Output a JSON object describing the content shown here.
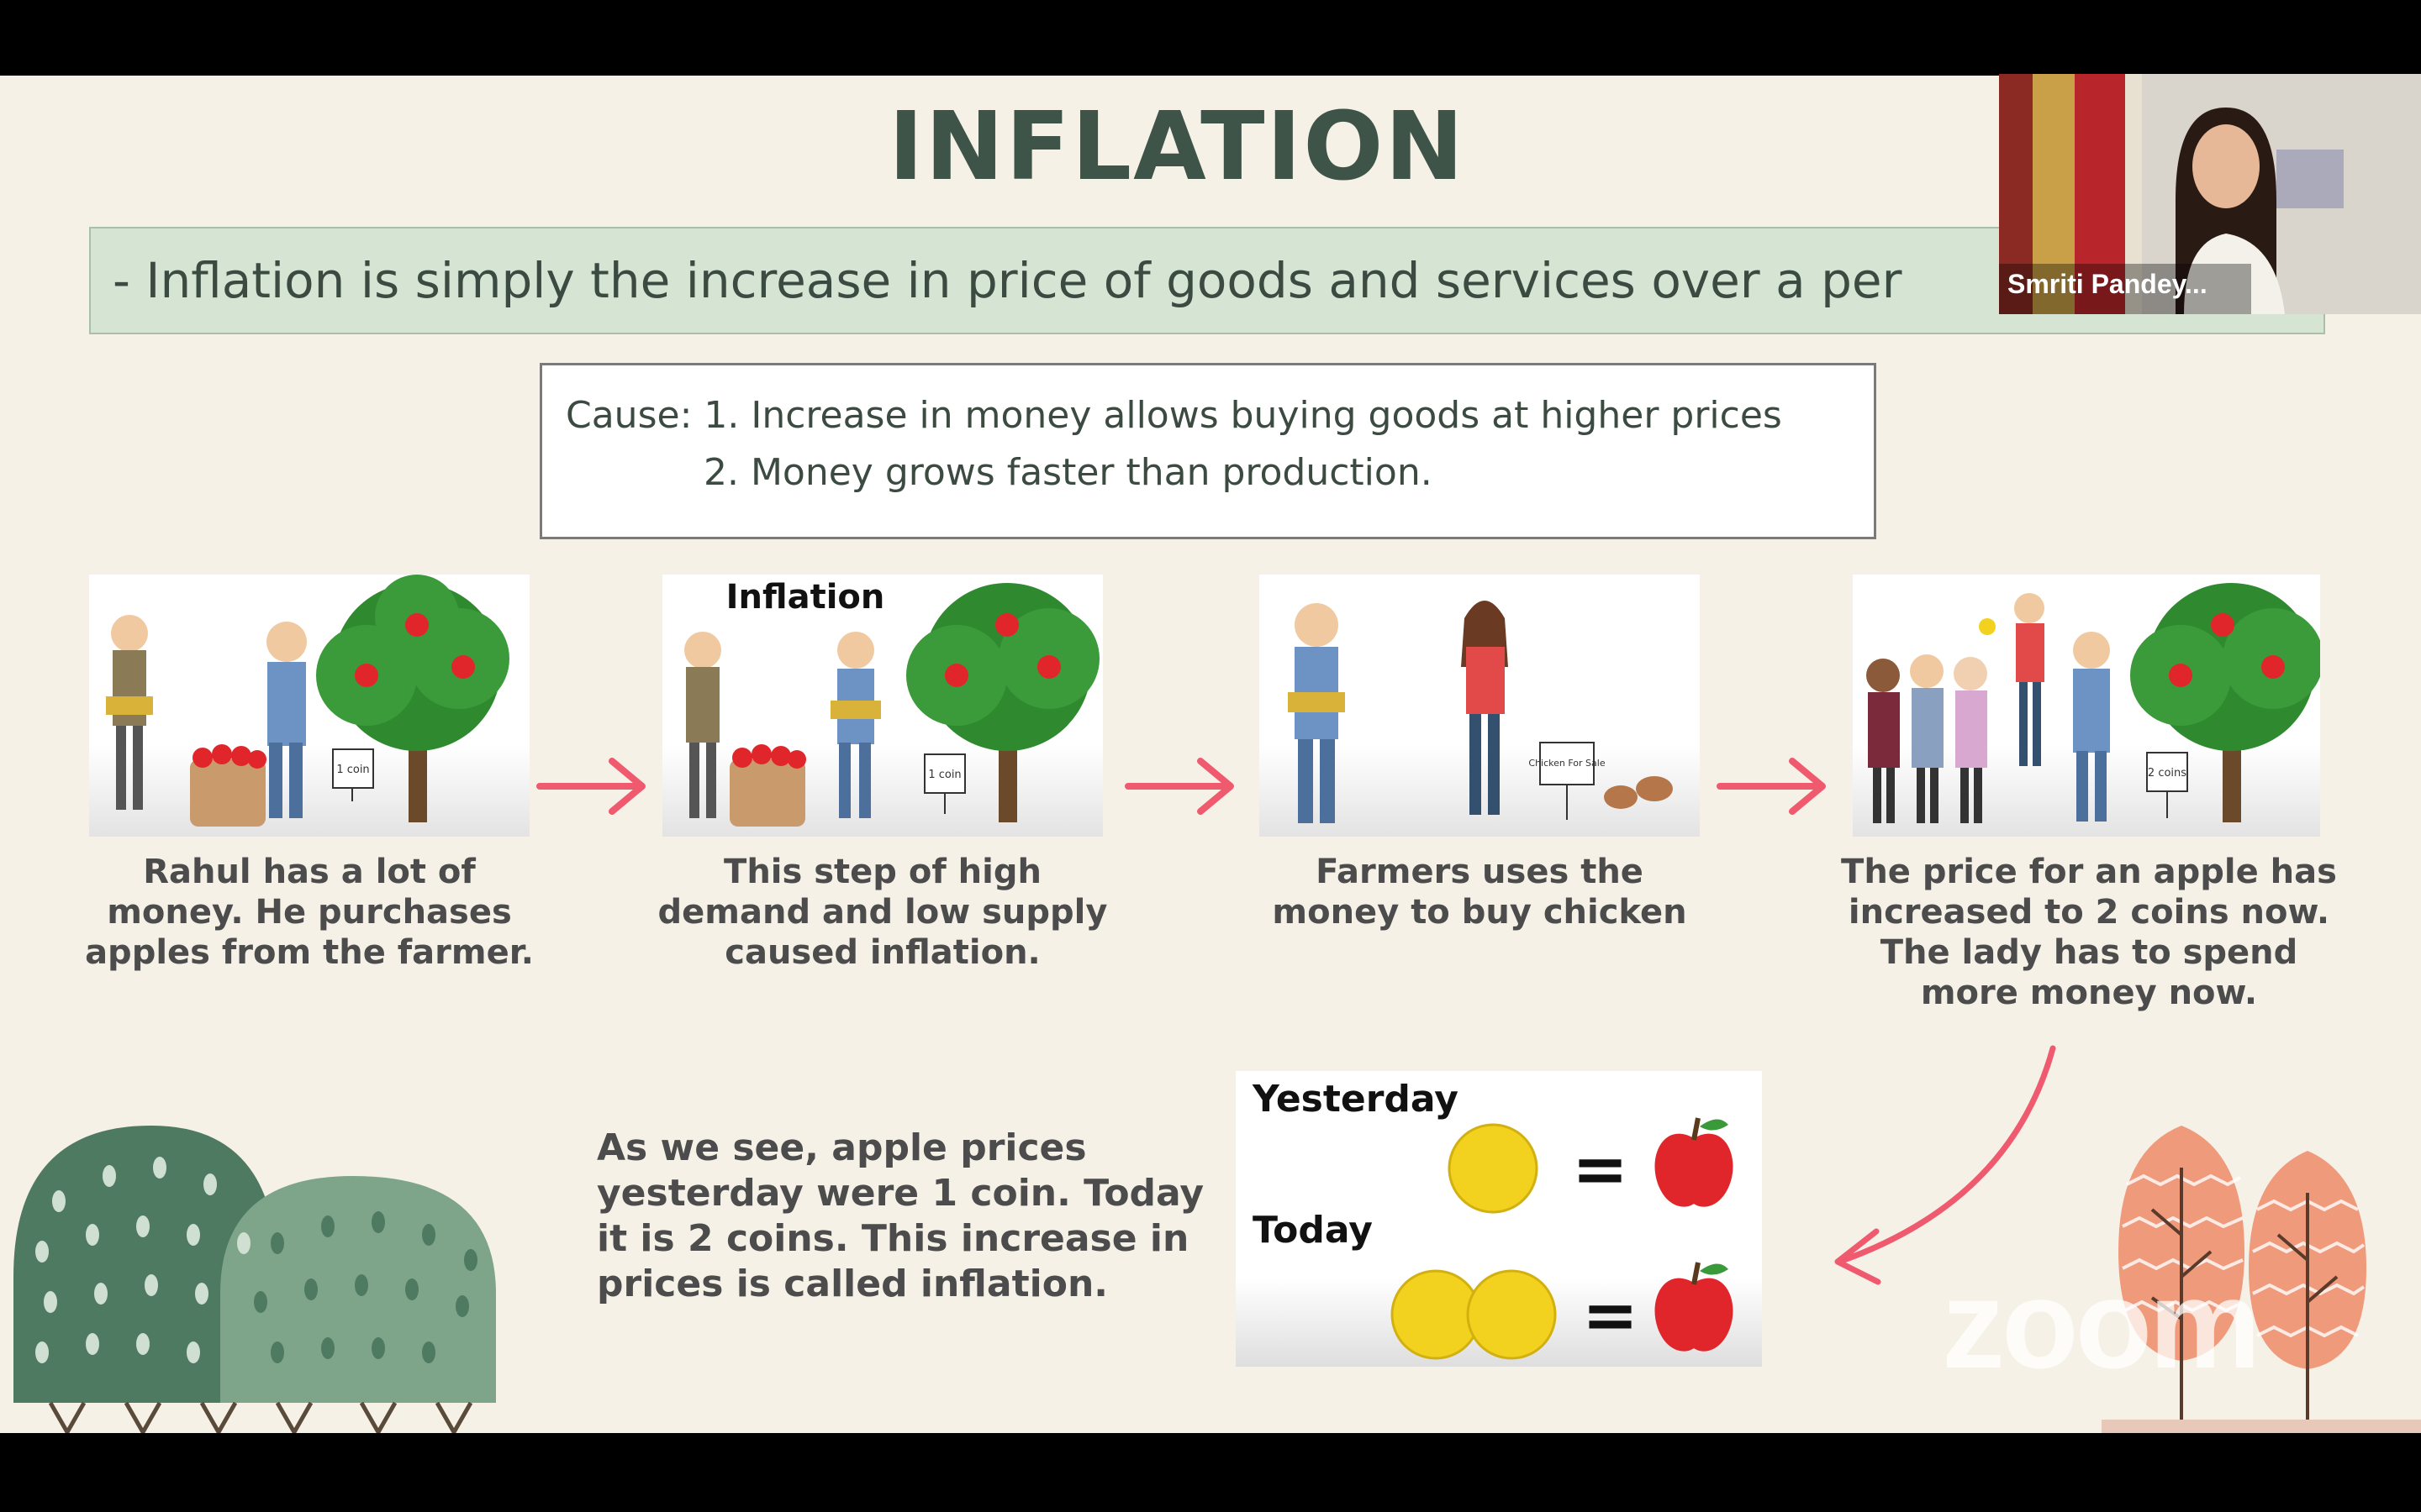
{
  "slide": {
    "title": "INFLATION",
    "definition": "- Inflation is simply the increase in price of goods and services over a per",
    "cause": {
      "line1": "Cause: 1. Increase in money allows buying goods at higher prices",
      "line2": "2. Money grows faster than production."
    },
    "panels": [
      {
        "caption": "Rahul has a lot of money. He purchases apples from the farmer.",
        "sign": "1 coin"
      },
      {
        "heading": "Inflation",
        "caption": "This step of high demand and low supply caused inflation.",
        "sign": "1 coin"
      },
      {
        "caption": "Farmers uses the money to buy chicken",
        "sign": "Chicken For Sale"
      },
      {
        "caption": "The price for an apple has increased to 2 coins now. The lady has to spend more money now.",
        "sign": "2 coins"
      }
    ],
    "summary": "As we see, apple prices yesterday were 1 coin. Today it is 2 coins. This increase in prices is called inflation.",
    "comparison": {
      "yesterday_label": "Yesterday",
      "today_label": "Today",
      "equals": "="
    },
    "watermark": "zoom",
    "colors": {
      "background": "#f6f1e7",
      "title": "#3e5448",
      "definition_bg": "#d6e4d3",
      "arrow": "#ef5a6f",
      "apple": "#e0262b",
      "coin": "#f2d21e",
      "bush_dark": "#4f7a62",
      "bush_light": "#7ea48a"
    }
  },
  "video_tile": {
    "participant_name": "Smriti Pandey..."
  },
  "icons": {
    "arrow": "right-arrow-icon",
    "curved_arrow": "curved-arrow-icon",
    "coin": "coin-icon",
    "apple": "apple-icon"
  }
}
